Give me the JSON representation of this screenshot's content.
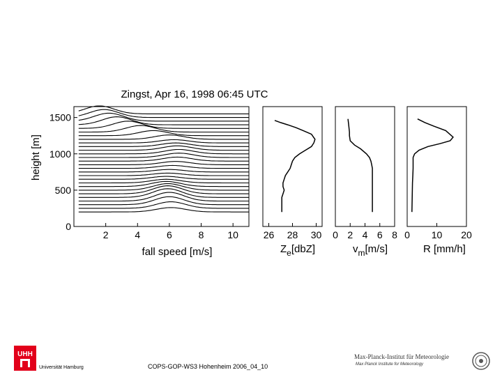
{
  "chart_data": [
    {
      "type": "line",
      "title": "Zingst, Apr 16, 1998 06:45 UTC",
      "xlabel": "fall speed [m/s]",
      "ylabel": "height [m]",
      "xlim": [
        0,
        11
      ],
      "ylim": [
        0,
        1650
      ],
      "x_ticks": [
        "2",
        "4",
        "6",
        "8",
        "10"
      ],
      "y_ticks": [
        "0",
        "500",
        "1000",
        "1500"
      ],
      "description_series": "Doppler spectra stacked by height; each trace is the baseline at its height plus spectral density",
      "spectra": {
        "baselines_m": [
          200,
          250,
          300,
          350,
          400,
          450,
          500,
          550,
          600,
          650,
          700,
          750,
          800,
          850,
          900,
          950,
          1000,
          1050,
          1100,
          1150,
          1200,
          1250,
          1300,
          1350,
          1400,
          1450,
          1500,
          1550
        ],
        "peak_speed_m_s": [
          6.1,
          6.1,
          6.0,
          6.0,
          5.9,
          5.9,
          5.9,
          5.8,
          5.8,
          5.8,
          5.9,
          6.0,
          6.2,
          6.4,
          6.5,
          6.6,
          6.6,
          6.5,
          6.4,
          6.3,
          6.0,
          5.0,
          4.2,
          3.4,
          2.7,
          2.2,
          1.9,
          1.6
        ],
        "peak_amplitude_m": [
          60,
          90,
          110,
          120,
          120,
          110,
          90,
          70,
          50,
          40,
          35,
          35,
          40,
          45,
          55,
          60,
          60,
          60,
          50,
          45,
          60,
          70,
          90,
          100,
          110,
          110,
          110,
          110
        ]
      }
    },
    {
      "type": "line",
      "xlabel": "Z",
      "xlabel_sub": "e",
      "xlabel_unit": "[dbZ]",
      "xlim": [
        25.5,
        30.5
      ],
      "x_ticks": [
        "26",
        "28",
        "30"
      ],
      "ylim": [
        0,
        1650
      ],
      "x": [
        26.5,
        27.0,
        27.6,
        28.3,
        28.9,
        29.6,
        29.9,
        29.8,
        29.6,
        29.1,
        28.6,
        28.2,
        28.0,
        27.9,
        27.8,
        27.6,
        27.4,
        27.3,
        27.2,
        27.2,
        27.3,
        27.2,
        27.1,
        27.1,
        27.1
      ],
      "y": [
        1460,
        1430,
        1400,
        1360,
        1320,
        1270,
        1200,
        1150,
        1100,
        1050,
        1000,
        950,
        900,
        850,
        800,
        750,
        700,
        650,
        600,
        550,
        500,
        450,
        400,
        300,
        200
      ]
    },
    {
      "type": "line",
      "xlabel": "v",
      "xlabel_sub": "m",
      "xlabel_unit": "[m/s]",
      "xlim": [
        0,
        8
      ],
      "x_ticks": [
        "0",
        "2",
        "4",
        "6",
        "8"
      ],
      "ylim": [
        0,
        1650
      ],
      "x": [
        1.7,
        1.8,
        1.9,
        1.9,
        2.0,
        2.6,
        3.4,
        4.2,
        4.6,
        4.8,
        4.9,
        5.0,
        5.0,
        5.0,
        5.0,
        5.0,
        5.0
      ],
      "y": [
        1480,
        1400,
        1300,
        1250,
        1180,
        1120,
        1070,
        1000,
        950,
        900,
        850,
        800,
        700,
        600,
        500,
        400,
        200
      ]
    },
    {
      "type": "line",
      "xlabel": "R [mm/h]",
      "xlim": [
        0,
        20
      ],
      "x_ticks": [
        "0",
        "10",
        "20"
      ],
      "ylim": [
        0,
        1650
      ],
      "x": [
        3.5,
        6.0,
        9.0,
        13.0,
        15.5,
        14.5,
        11.0,
        7.0,
        4.0,
        2.5,
        2.0,
        2.0,
        2.0,
        1.9,
        1.8,
        1.7,
        1.6
      ],
      "y": [
        1480,
        1430,
        1380,
        1320,
        1230,
        1180,
        1140,
        1100,
        1050,
        1000,
        950,
        900,
        800,
        700,
        600,
        400,
        200
      ]
    }
  ],
  "footer": {
    "text": "COPS-GOP-WS3 Hohenheim 2006_04_10",
    "left_logo_text": "Universität Hamburg",
    "left_logo_mark": "UHH",
    "right_logo_title": "Max-Planck-Institut für Meteorologie",
    "right_logo_subtitle": "Max Planck Institute for Meteorology"
  }
}
